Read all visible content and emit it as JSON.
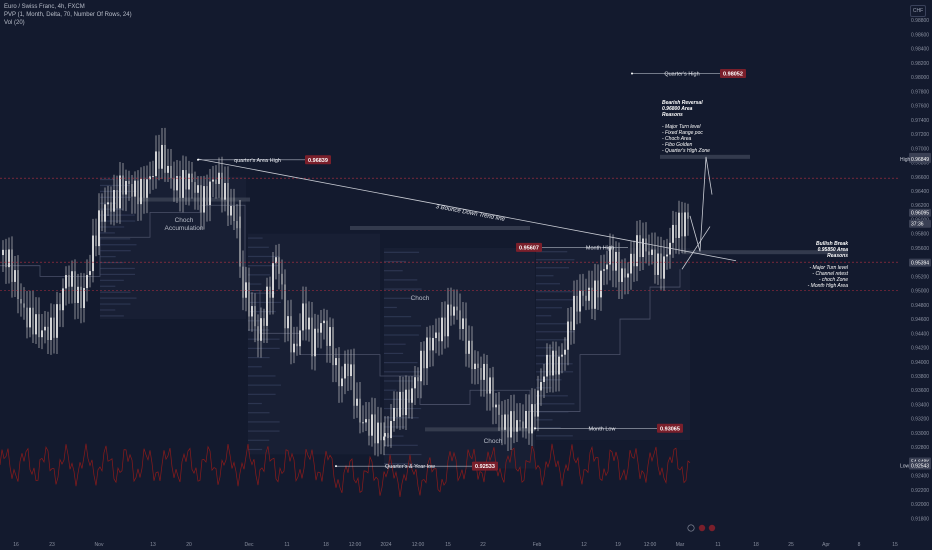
{
  "header": {
    "symbol_line": "Euro / Swiss Franc, 4h, FXCM",
    "indicator_line": "PVP (1, Month, Delta, 70, Number Of Rows, 24)",
    "volume_line": "Vol (20)",
    "currency_badge": "CHF"
  },
  "colors": {
    "background": "#131a2e",
    "candle": "#d9d9d9",
    "volume_line": "#8c1b1b",
    "trend_line": "#c9ccd4",
    "level_badge": "#7a1f2b",
    "dashed_level": "#b23040",
    "zone": "#3a4152"
  },
  "chart_data": {
    "type": "candlestick",
    "title": "Euro / Swiss Franc, 4h, FXCM",
    "price_axis": {
      "range": [
        0.9172,
        0.99
      ],
      "ticks": [
        "0.98800",
        "0.98600",
        "0.98400",
        "0.98200",
        "0.98000",
        "0.97800",
        "0.97600",
        "0.97400",
        "0.97200",
        "0.97000",
        "0.96800",
        "0.96600",
        "0.96400",
        "0.96200",
        "0.96000",
        "0.95800",
        "0.95600",
        "0.95400",
        "0.95200",
        "0.95000",
        "0.94800",
        "0.94600",
        "0.94400",
        "0.94200",
        "0.94000",
        "0.93800",
        "0.93600",
        "0.93400",
        "0.93200",
        "0.93000",
        "0.92800",
        "0.92600",
        "0.92400",
        "0.92200",
        "0.92000",
        "0.91800"
      ],
      "current_price_labels": [
        {
          "price": 0.96879,
          "text": "0.96879"
        },
        {
          "price": 0.96849,
          "text": "0.96849",
          "tag": "High"
        },
        {
          "price": 0.96095,
          "text": "0.96095"
        },
        {
          "price": 0.9594,
          "text": "37:36"
        },
        {
          "price": 0.95394,
          "text": "0.95394"
        },
        {
          "price": 0.92598,
          "text": "54.648K"
        },
        {
          "price": 0.92543,
          "text": "0.92543",
          "tag": "Low"
        }
      ]
    },
    "time_axis": {
      "labels": [
        "16",
        "23",
        "Nov",
        "13",
        "20",
        "Dec",
        "11",
        "18",
        "12:00",
        "2024",
        "12:00",
        "15",
        "22",
        "Feb",
        "12",
        "19",
        "12:00",
        "Mar",
        "11",
        "18",
        "25",
        "Apr",
        "8",
        "15"
      ]
    },
    "price_path": [
      [
        0.955,
        0.952,
        0.947,
        0.943,
        0.946,
        0.951,
        0.949,
        0.956,
        0.962,
        0.965,
        0.963,
        0.966,
        0.968,
        0.966,
        0.965,
        0.963,
        0.966,
        0.962,
        0.96
      ],
      [
        0.953,
        0.947,
        0.943,
        0.95,
        0.955,
        0.945,
        0.942,
        0.948,
        0.941,
        0.946,
        0.944,
        0.936,
        0.939,
        0.934,
        0.931,
        0.929,
        0.93
      ],
      [
        0.929,
        0.933,
        0.937,
        0.94,
        0.945,
        0.947,
        0.944,
        0.939,
        0.935,
        0.932,
        0.93,
        0.933,
        0.938,
        0.94,
        0.946,
        0.949,
        0.951,
        0.954,
        0.953,
        0.955,
        0.956,
        0.953,
        0.959,
        0.962
      ]
    ],
    "trend_line": {
      "label": "3 Bounce Down Trend line",
      "from": [
        0.0,
        0.9685
      ],
      "to": [
        1.0,
        0.9542
      ]
    },
    "levels": [
      {
        "label": "Quarter's High",
        "value": "0.98052",
        "price": 0.98052
      },
      {
        "label": "quarter's Area High",
        "value": "0.96839",
        "price": 0.96839
      },
      {
        "label": "Month High",
        "value": "0.95607",
        "price": 0.95607
      },
      {
        "label": "Month Low",
        "value": "0.93065",
        "price": 0.93065
      },
      {
        "label": "Quarter's & Year low",
        "value": "0.92533",
        "price": 0.92533
      }
    ],
    "annotations": {
      "choch_accumulation": [
        "Choch",
        "Accumulation"
      ],
      "choch_mid": "Choch",
      "choch_low": "Choch",
      "bearish_reversal": [
        "Bearish Reversal",
        "0.96800 Area",
        "Reasons",
        "",
        "- Major Turn level",
        "- Fixed Range poc",
        "- Choch Area",
        "- Fibo Golden",
        "- Quarter's High Zone"
      ],
      "bullish_break": [
        "Bullish Break",
        "0.95850 Area",
        "Reasons",
        "",
        "- Major Turn level",
        "- Channel retest",
        "- choch Zone",
        "- Month High Area"
      ]
    },
    "volume_series": "Vol (20)",
    "grid": false
  }
}
